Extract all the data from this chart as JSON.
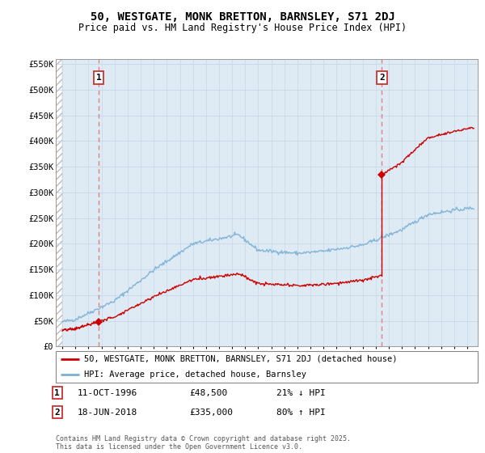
{
  "title_line1": "50, WESTGATE, MONK BRETTON, BARNSLEY, S71 2DJ",
  "title_line2": "Price paid vs. HM Land Registry's House Price Index (HPI)",
  "hpi_color": "#7bafd4",
  "price_color": "#cc0000",
  "annotation_line_color": "#e08080",
  "background_color": "#ffffff",
  "grid_color": "#c8d8e8",
  "plot_bg_color": "#deeaf4",
  "ylim": [
    0,
    560000
  ],
  "yticks": [
    0,
    50000,
    100000,
    150000,
    200000,
    250000,
    300000,
    350000,
    400000,
    450000,
    500000,
    550000
  ],
  "ytick_labels": [
    "£0",
    "£50K",
    "£100K",
    "£150K",
    "£200K",
    "£250K",
    "£300K",
    "£350K",
    "£400K",
    "£450K",
    "£500K",
    "£550K"
  ],
  "sale1_x": 1996.78,
  "sale1_y": 48500,
  "sale1_label": "1",
  "sale1_date": "11-OCT-1996",
  "sale1_price": "£48,500",
  "sale1_hpi": "21% ↓ HPI",
  "sale2_x": 2018.46,
  "sale2_y": 335000,
  "sale2_label": "2",
  "sale2_date": "18-JUN-2018",
  "sale2_price": "£335,000",
  "sale2_hpi": "80% ↑ HPI",
  "legend_label1": "50, WESTGATE, MONK BRETTON, BARNSLEY, S71 2DJ (detached house)",
  "legend_label2": "HPI: Average price, detached house, Barnsley",
  "footer_text": "Contains HM Land Registry data © Crown copyright and database right 2025.\nThis data is licensed under the Open Government Licence v3.0.",
  "xmin": 1993.5,
  "xmax": 2025.8,
  "data_start": 1994.0,
  "data_end": 2025.5
}
